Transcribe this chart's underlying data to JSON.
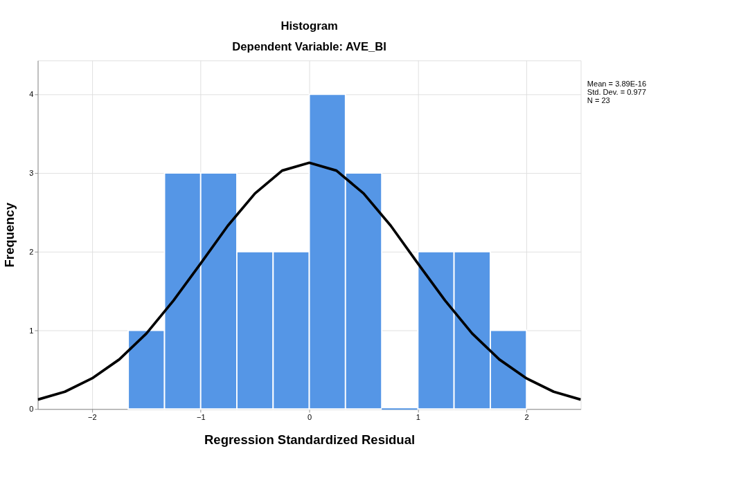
{
  "chart_data": {
    "type": "histogram",
    "title": "Histogram",
    "subtitle": "Dependent Variable: AVE_BI",
    "xlabel": "Regression Standardized Residual",
    "ylabel": "Frequency",
    "bins": [
      -1.667,
      -1.333,
      -1.0,
      -0.667,
      -0.333,
      0.0,
      0.333,
      0.667,
      1.0,
      1.333,
      1.667,
      2.0
    ],
    "values": [
      1,
      3,
      3,
      2,
      2,
      4,
      3,
      0,
      2,
      2,
      1
    ],
    "color": "#5596e6",
    "series": [
      {
        "type": "line",
        "color": "#000000",
        "x": [
          -2.5,
          -2.25,
          -2.0,
          -1.75,
          -1.5,
          -1.25,
          -1.0,
          -0.75,
          -0.5,
          -0.25,
          0.0,
          0.25,
          0.5,
          0.75,
          1.0,
          1.25,
          1.5,
          1.75,
          2.0,
          2.25,
          2.5
        ],
        "values": [
          0.12,
          0.22,
          0.39,
          0.63,
          0.96,
          1.38,
          1.85,
          2.33,
          2.74,
          3.03,
          3.13,
          3.03,
          2.74,
          2.33,
          1.85,
          1.38,
          0.96,
          0.63,
          0.39,
          0.22,
          0.12
        ]
      }
    ],
    "xlim": [
      -2.5,
      2.5
    ],
    "xticks": [
      -2,
      -1,
      0,
      1,
      2
    ],
    "ylim": [
      0,
      4.43
    ],
    "yticks": [
      0,
      1,
      2,
      3,
      4
    ],
    "grid": true,
    "annotations": [
      "Mean = 3.89E-16",
      "Std. Dev. = 0.977",
      "N = 23"
    ]
  }
}
